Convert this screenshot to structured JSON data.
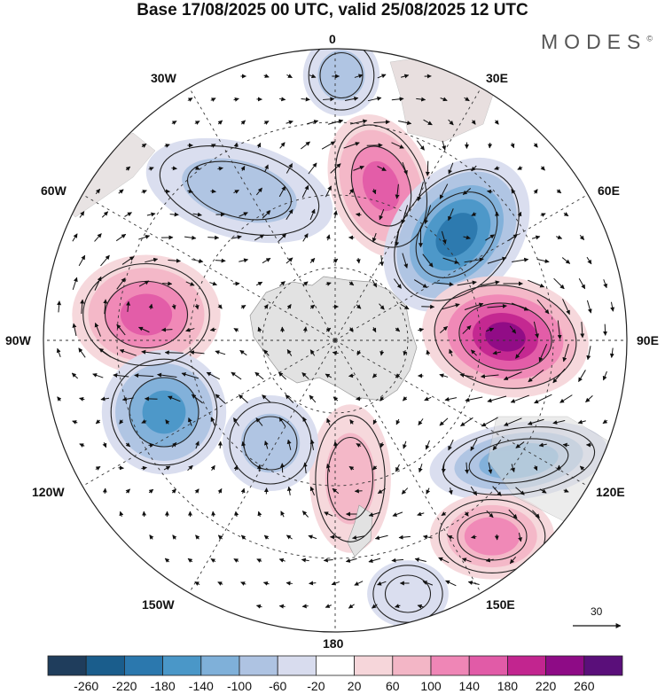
{
  "title": "Base 17/08/2025 00 UTC, valid 25/08/2025 12 UTC",
  "brand": "MODES",
  "brand_mark": "©",
  "longitudes": {
    "top": "0",
    "bottom": "180",
    "left": "90W",
    "right": "90E",
    "nw1": "30W",
    "nw2": "60W",
    "ne1": "30E",
    "ne2": "60E",
    "sw1": "120W",
    "sw2": "150W",
    "se1": "120E",
    "se2": "150E"
  },
  "vector_reference": "30",
  "colorbar": {
    "labels": [
      "-260",
      "-220",
      "-180",
      "-140",
      "-100",
      "-60",
      "-20",
      "20",
      "60",
      "100",
      "140",
      "180",
      "220",
      "260"
    ],
    "colors": [
      "#1f3d5c",
      "#1a5d8c",
      "#2b78ae",
      "#4a97c8",
      "#7fb0d9",
      "#aec3e2",
      "#d8dcee",
      "#ffffff",
      "#f6d6da",
      "#f3b6c6",
      "#ef86b6",
      "#e15ba7",
      "#c2258f",
      "#8e0b86",
      "#5a0f7a"
    ]
  },
  "colors": {
    "land": "#e5e5e5",
    "frame": "#222222"
  },
  "map_anomalies": [
    {
      "name": "pos-center-north",
      "value": 160
    },
    {
      "name": "neg-northeast",
      "value": -220
    },
    {
      "name": "pos-east",
      "value": 250
    },
    {
      "name": "pos-west",
      "value": 180
    },
    {
      "name": "neg-west-southwest",
      "value": -170
    },
    {
      "name": "neg-southeast",
      "value": -150
    },
    {
      "name": "pos-south-east",
      "value": 120
    },
    {
      "name": "pos-south",
      "value": 90
    },
    {
      "name": "neg-northwest",
      "value": -90
    },
    {
      "name": "neg-north-top",
      "value": -80
    },
    {
      "name": "neg-south-west",
      "value": -90
    },
    {
      "name": "neg-bottom",
      "value": -70
    }
  ]
}
